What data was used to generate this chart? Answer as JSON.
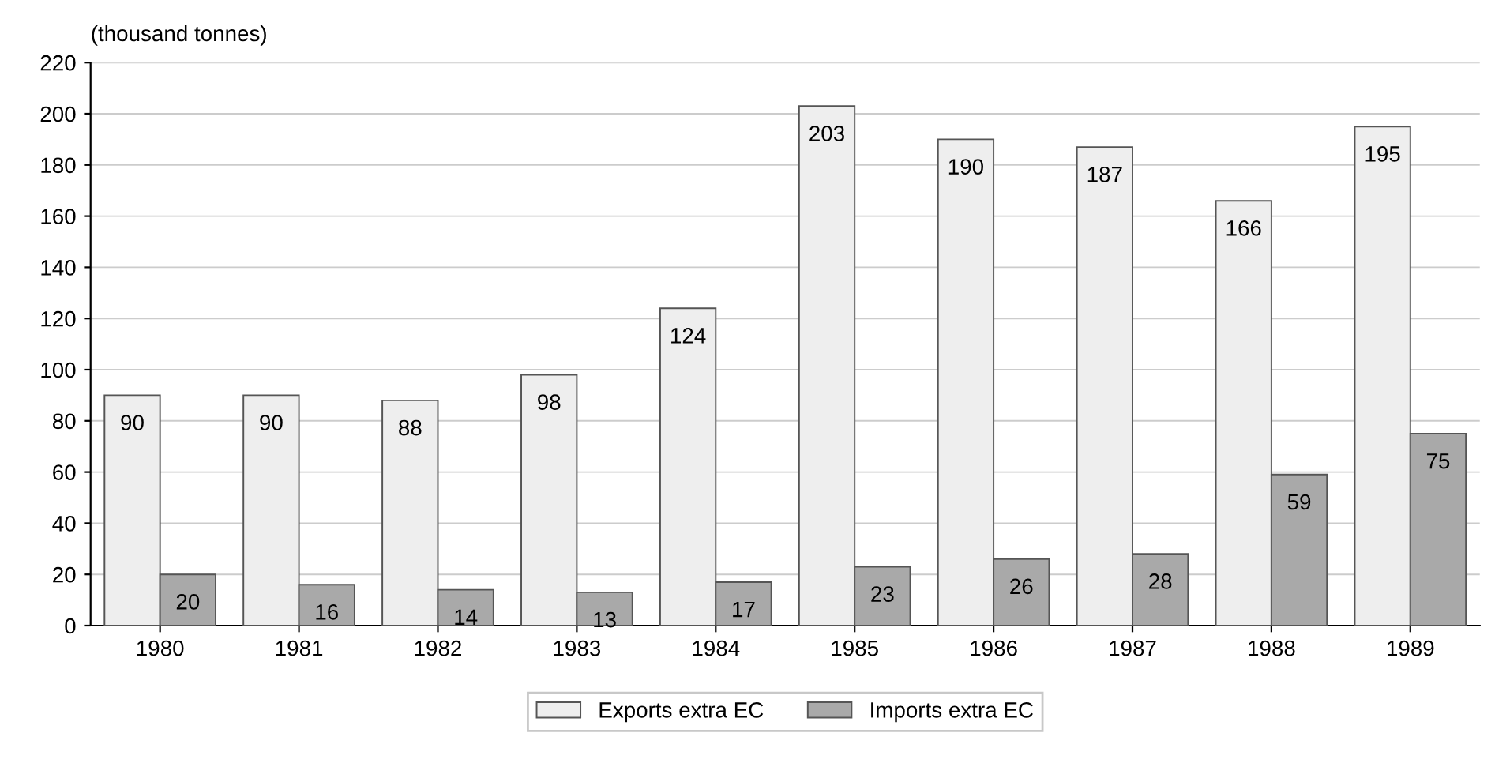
{
  "chart_data": {
    "type": "bar",
    "ylabel": "(thousand tonnes)",
    "categories": [
      "1980",
      "1981",
      "1982",
      "1983",
      "1984",
      "1985",
      "1986",
      "1987",
      "1988",
      "1989"
    ],
    "series": [
      {
        "name": "Exports extra EC",
        "color": "#eeeeee",
        "values": [
          90,
          90,
          88,
          98,
          124,
          203,
          190,
          187,
          166,
          195
        ]
      },
      {
        "name": "Imports extra EC",
        "color": "#a9a9a9",
        "values": [
          20,
          16,
          14,
          13,
          17,
          23,
          26,
          28,
          59,
          75
        ]
      }
    ],
    "ylim": [
      0,
      220
    ],
    "yticks": [
      0,
      20,
      40,
      60,
      80,
      100,
      120,
      140,
      160,
      180,
      200,
      220
    ],
    "grid": "y",
    "legend": "bottom",
    "data_labels": true
  }
}
